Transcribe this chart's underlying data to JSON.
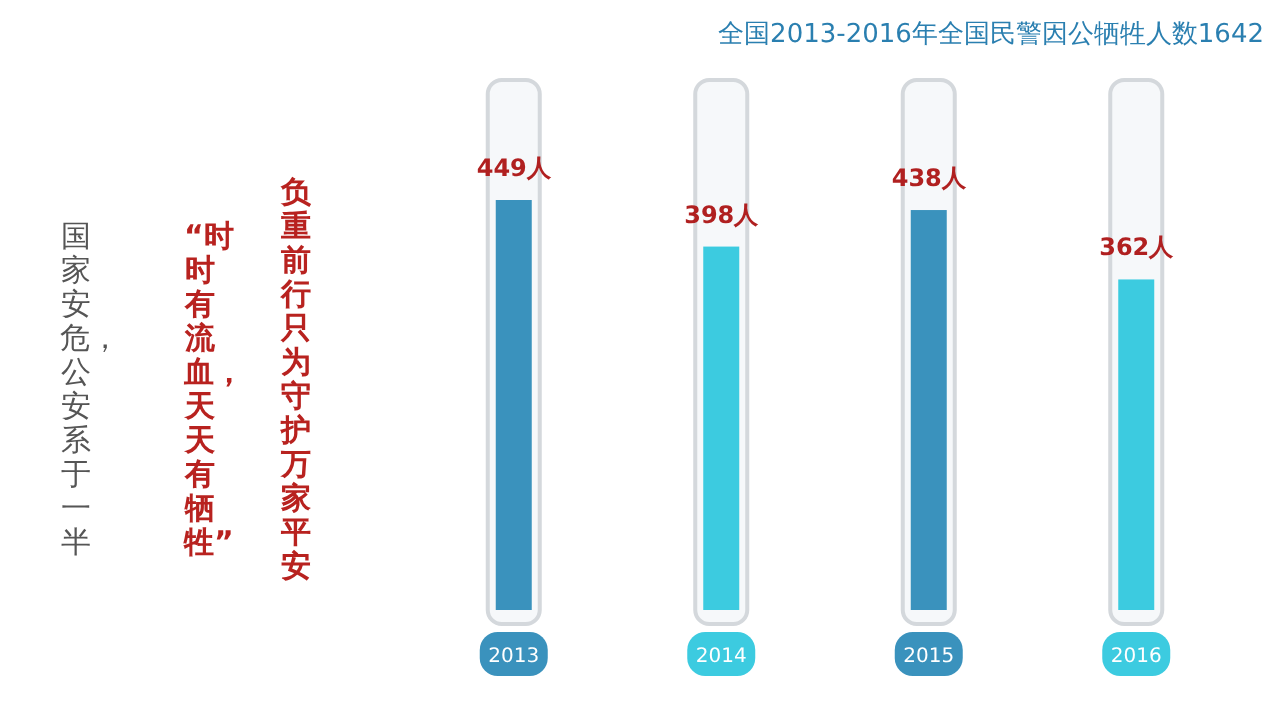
{
  "chart_data": {
    "type": "bar",
    "title": "全国2013-2016年全国民警因公牺牲人数1642",
    "categories": [
      "2013",
      "2014",
      "2015",
      "2016"
    ],
    "values": [
      449,
      398,
      438,
      362
    ],
    "colors": [
      "#3a92bd",
      "#3ccbe0",
      "#3a92bd",
      "#3ccbe0"
    ],
    "value_labels": [
      "449人",
      "398人",
      "438人",
      "362人"
    ],
    "annotations": [
      "负重前行只为守护万家平安",
      "“时时有流血，天天有牺牲”",
      "国家安危，公安系于一半"
    ]
  }
}
